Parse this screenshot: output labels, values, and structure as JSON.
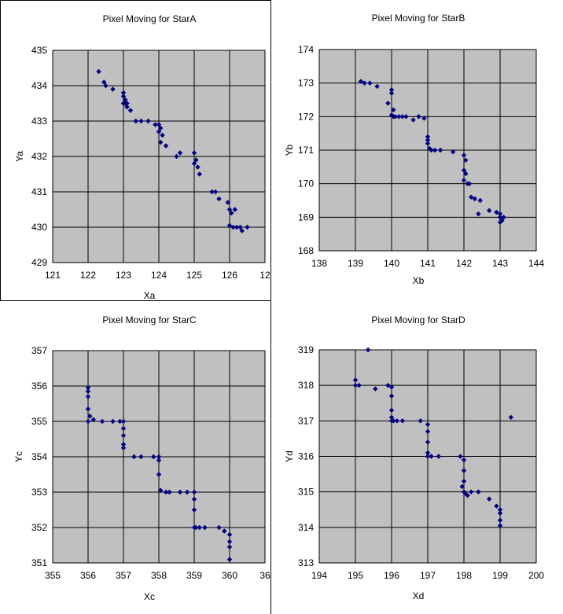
{
  "chart_data": [
    {
      "type": "scatter",
      "title": "Pixel Moving for StarA",
      "xlabel": "Xa",
      "ylabel": "Ya",
      "xlim": [
        121,
        127
      ],
      "ylim": [
        429,
        435
      ],
      "xticks": [
        "121",
        "122",
        "123",
        "124",
        "125",
        "126",
        "12"
      ],
      "yticks": [
        "429",
        "430",
        "431",
        "432",
        "433",
        "434",
        "435"
      ],
      "grid": true,
      "series": [
        {
          "color": "#000080",
          "x": [
            122.3,
            122.45,
            122.5,
            122.7,
            123.0,
            123.0,
            123.05,
            123.1,
            123.0,
            123.05,
            123.1,
            123.2,
            123.35,
            123.5,
            123.7,
            123.9,
            124.0,
            124.05,
            124.0,
            124.1,
            124.05,
            124.2,
            124.5,
            124.6,
            125.0,
            125.05,
            125.0,
            125.1,
            125.15,
            125.5,
            125.6,
            125.7,
            125.95,
            126.0,
            126.05,
            126.15,
            126.0,
            126.1,
            126.2,
            126.3,
            126.35,
            126.5
          ],
          "y": [
            434.4,
            434.1,
            434.0,
            433.9,
            433.8,
            433.7,
            433.6,
            433.5,
            433.5,
            433.5,
            433.4,
            433.3,
            433.0,
            433.0,
            433.0,
            432.9,
            432.9,
            432.8,
            432.7,
            432.6,
            432.4,
            432.3,
            432.0,
            432.1,
            432.1,
            431.9,
            431.8,
            431.7,
            431.5,
            431.0,
            431.0,
            430.8,
            430.7,
            430.5,
            430.4,
            430.5,
            430.05,
            430.0,
            430.0,
            430.0,
            429.9,
            430.0
          ]
        }
      ]
    },
    {
      "type": "scatter",
      "title": "Pixel Moving for StarB",
      "xlabel": "Xb",
      "ylabel": "Yb",
      "xlim": [
        138,
        144
      ],
      "ylim": [
        168,
        174
      ],
      "xticks": [
        "138",
        "139",
        "140",
        "141",
        "142",
        "143",
        "144"
      ],
      "yticks": [
        "168",
        "169",
        "170",
        "171",
        "172",
        "173",
        "174"
      ],
      "grid": true,
      "series": [
        {
          "color": "#000080",
          "x": [
            139.15,
            139.25,
            139.4,
            139.6,
            140.0,
            140.0,
            139.9,
            140.05,
            140.0,
            140.05,
            140.1,
            140.2,
            140.3,
            140.4,
            140.6,
            140.75,
            140.9,
            141.0,
            141.0,
            141.0,
            141.05,
            141.1,
            141.2,
            141.35,
            141.7,
            142.0,
            142.05,
            142.0,
            142.05,
            142.0,
            142.1,
            142.15,
            142.2,
            142.3,
            142.45,
            142.4,
            142.7,
            142.9,
            143.0,
            143.0,
            143.1,
            143.05,
            143.0
          ],
          "y": [
            173.05,
            173.0,
            173.0,
            172.9,
            172.8,
            172.7,
            172.4,
            172.2,
            172.05,
            172.0,
            172.0,
            172.0,
            172.0,
            172.0,
            171.9,
            172.0,
            171.95,
            171.4,
            171.3,
            171.2,
            171.05,
            171.0,
            171.0,
            171.0,
            170.95,
            170.85,
            170.7,
            170.4,
            170.3,
            170.1,
            170.0,
            170.0,
            169.6,
            169.55,
            169.5,
            169.1,
            169.2,
            169.15,
            169.1,
            169.0,
            169.0,
            168.9,
            168.85
          ]
        }
      ]
    },
    {
      "type": "scatter",
      "title": "Pixel Moving for StarC",
      "xlabel": "Xc",
      "ylabel": "Yc",
      "xlim": [
        355,
        361
      ],
      "ylim": [
        351,
        357
      ],
      "xticks": [
        "355",
        "356",
        "357",
        "358",
        "359",
        "360",
        "36"
      ],
      "yticks": [
        "351",
        "352",
        "353",
        "354",
        "355",
        "356",
        "357"
      ],
      "grid": true,
      "series": [
        {
          "color": "#000080",
          "x": [
            356.0,
            356.0,
            356.0,
            356.0,
            356.0,
            356.05,
            356.15,
            356.4,
            356.7,
            356.9,
            357.0,
            357.0,
            357.0,
            357.0,
            357.0,
            357.3,
            357.5,
            357.85,
            358.0,
            358.0,
            358.0,
            358.05,
            358.2,
            358.3,
            358.6,
            358.8,
            359.0,
            359.0,
            359.0,
            359.0,
            359.05,
            359.15,
            359.3,
            359.7,
            359.85,
            360.0,
            360.0,
            360.0,
            360.0
          ],
          "y": [
            355.95,
            355.85,
            355.7,
            355.35,
            355.0,
            355.15,
            355.05,
            355.0,
            355.0,
            355.0,
            355.0,
            354.8,
            354.6,
            354.35,
            354.25,
            354.0,
            354.0,
            354.0,
            354.0,
            353.9,
            353.5,
            353.05,
            353.0,
            353.0,
            353.0,
            353.0,
            353.0,
            352.8,
            352.5,
            352.0,
            352.0,
            352.0,
            352.0,
            352.0,
            351.9,
            351.8,
            351.6,
            351.45,
            351.1
          ]
        }
      ]
    },
    {
      "type": "scatter",
      "title": "Pixel Moving for StarD",
      "xlabel": "Xd",
      "ylabel": "Yd",
      "xlim": [
        194,
        200
      ],
      "ylim": [
        313,
        319
      ],
      "xticks": [
        "194",
        "195",
        "196",
        "197",
        "198",
        "199",
        "200"
      ],
      "yticks": [
        "313",
        "314",
        "315",
        "316",
        "317",
        "318",
        "319"
      ],
      "grid": true,
      "series": [
        {
          "color": "#000080",
          "x": [
            195.35,
            195.0,
            195.0,
            195.1,
            195.55,
            195.9,
            196.0,
            196.0,
            196.0,
            196.0,
            196.0,
            196.05,
            196.15,
            196.3,
            196.8,
            197.0,
            197.0,
            197.0,
            197.0,
            197.0,
            197.1,
            197.3,
            197.9,
            198.0,
            198.0,
            198.0,
            197.95,
            198.0,
            198.05,
            198.1,
            198.2,
            198.4,
            198.7,
            198.9,
            199.0,
            199.0,
            199.0,
            199.0,
            199.3
          ],
          "y": [
            319.0,
            318.15,
            318.0,
            318.0,
            317.9,
            318.0,
            317.95,
            317.7,
            317.3,
            317.1,
            317.0,
            317.0,
            317.0,
            317.0,
            317.0,
            316.9,
            316.7,
            316.4,
            316.1,
            316.0,
            316.0,
            316.0,
            316.0,
            315.9,
            315.6,
            315.3,
            315.15,
            315.0,
            314.95,
            314.9,
            315.0,
            315.0,
            314.8,
            314.6,
            314.5,
            314.4,
            314.2,
            314.05,
            317.1
          ]
        }
      ]
    }
  ]
}
